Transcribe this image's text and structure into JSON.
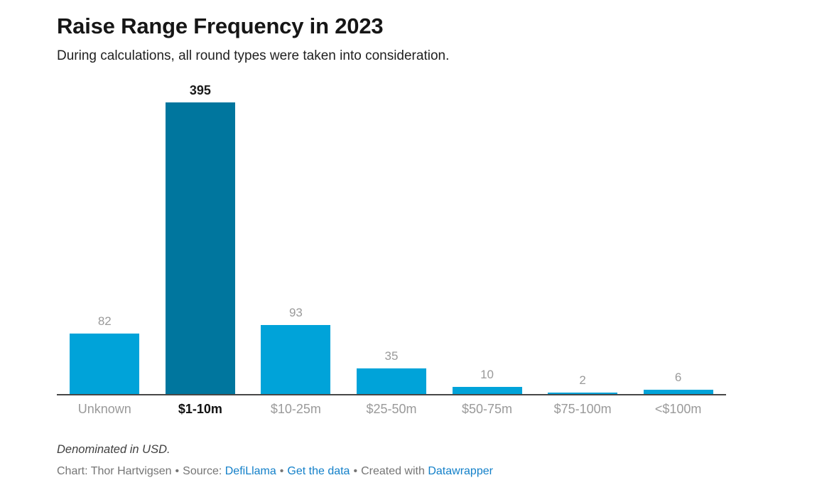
{
  "header": {
    "title": "Raise Range Frequency in 2023",
    "subtitle": "During calculations, all round types were taken into consideration."
  },
  "chart_data": {
    "type": "bar",
    "title": "Raise Range Frequency in 2023",
    "subtitle": "During calculations, all round types were taken into consideration.",
    "categories": [
      "Unknown",
      "$1-10m",
      "$10-25m",
      "$25-50m",
      "$50-75m",
      "$75-100m",
      "<$100m"
    ],
    "values": [
      82,
      395,
      93,
      35,
      10,
      2,
      6
    ],
    "highlight_index": 1,
    "highlighted_category": "$1-10m",
    "ylim": [
      0,
      395
    ],
    "grid": false,
    "legend": "none",
    "value_labels_shown": true,
    "colors": {
      "bar": "#00a3d9",
      "highlight_bar": "#00769e",
      "value_label": "#9a9a9a",
      "highlight_value_label": "#1a1a1a",
      "axis_line": "#474747",
      "category_label": "#9a9a9a",
      "highlight_category_label": "#111111"
    }
  },
  "footer": {
    "note": "Denominated in USD.",
    "credit_prefix": "Chart: Thor Hartvigsen",
    "separator": "•",
    "source_label": "Source:",
    "source_link": "DefiLlama",
    "data_link": "Get the data",
    "created_with": "Created with",
    "tool_link": "Datawrapper",
    "link_color": "#1380c9"
  }
}
